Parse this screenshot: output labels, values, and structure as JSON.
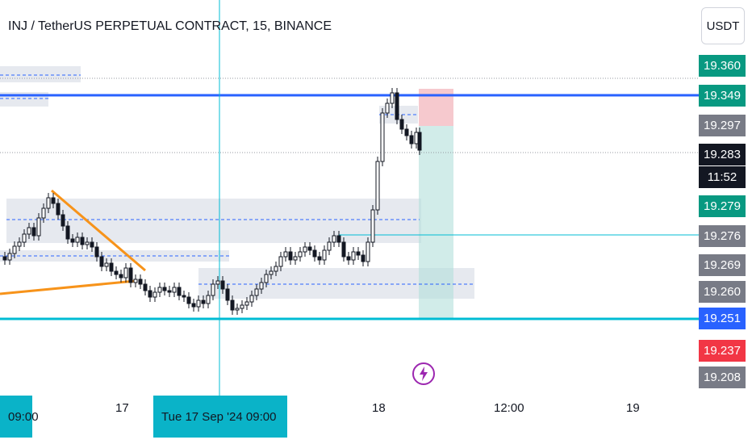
{
  "header": {
    "title": "INJ / TetherUS PERPETUAL CONTRACT, 15, BINANCE",
    "currency": "USDT"
  },
  "price_axis": {
    "labels": [
      {
        "text": "19.360",
        "bg": "#089981"
      },
      {
        "text": "19.349",
        "bg": "#089981"
      },
      {
        "text": "19.297",
        "bg": "#787b86"
      },
      {
        "text": "19.283",
        "bg": "#131722"
      },
      {
        "text": "11:52",
        "bg": "#131722"
      },
      {
        "text": "19.279",
        "bg": "#089981"
      },
      {
        "text": "19.276",
        "bg": "#787b86"
      },
      {
        "text": "19.269",
        "bg": "#787b86"
      },
      {
        "text": "19.260",
        "bg": "#787b86"
      },
      {
        "text": "19.251",
        "bg": "#2962ff"
      },
      {
        "text": "19.237",
        "bg": "#f23645"
      },
      {
        "text": "19.208",
        "bg": "#787b86"
      }
    ]
  },
  "time_axis": {
    "labels": [
      {
        "text": "09:00",
        "highlight": true
      },
      {
        "text": "17",
        "highlight": false
      },
      {
        "text": "Tue 17 Sep '24   09:00",
        "highlight": true
      },
      {
        "text": "18",
        "highlight": false
      },
      {
        "text": "12:00",
        "highlight": false
      },
      {
        "text": "19",
        "highlight": false
      }
    ]
  },
  "colors": {
    "up": "#ffffff",
    "down": "#131722",
    "accent_blue": "#2962ff",
    "cyan": "#00bcd4",
    "orange": "#f7931a",
    "zone_gray": "#e0e3eb",
    "profit": "#b2dfdb",
    "loss": "#f5c0c6"
  },
  "icons": {
    "lightning": "lightning-icon"
  }
}
